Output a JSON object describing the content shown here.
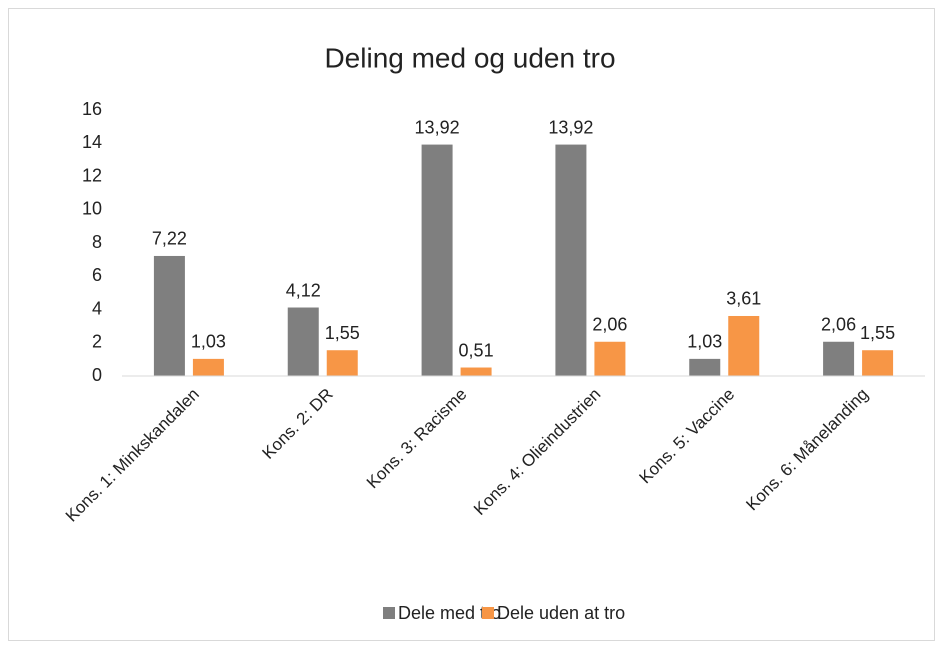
{
  "chart_data": {
    "type": "bar",
    "title": "Deling med og uden tro",
    "categories": [
      "Kons. 1: Minkskandalen",
      "Kons. 2: DR",
      "Kons. 3: Racisme",
      "Kons. 4: Olieindustrien",
      "Kons. 5: Vaccine",
      "Kons. 6: Månelanding"
    ],
    "series": [
      {
        "name": "Dele med tro",
        "color": "#7f7f7f",
        "values": [
          7.22,
          4.12,
          13.92,
          13.92,
          1.03,
          2.06
        ],
        "value_labels": [
          "7,22",
          "4,12",
          "13,92",
          "13,92",
          "1,03",
          "2,06"
        ]
      },
      {
        "name": "Dele uden at tro",
        "color": "#f79646",
        "values": [
          1.03,
          1.55,
          0.51,
          2.06,
          3.61,
          1.55
        ],
        "value_labels": [
          "1,03",
          "1,55",
          "0,51",
          "2,06",
          "3,61",
          "1,55"
        ]
      }
    ],
    "ylim": [
      0,
      16
    ],
    "yticks": [
      0,
      2,
      4,
      6,
      8,
      10,
      12,
      14,
      16
    ],
    "grid": false,
    "legend": "bottom"
  }
}
